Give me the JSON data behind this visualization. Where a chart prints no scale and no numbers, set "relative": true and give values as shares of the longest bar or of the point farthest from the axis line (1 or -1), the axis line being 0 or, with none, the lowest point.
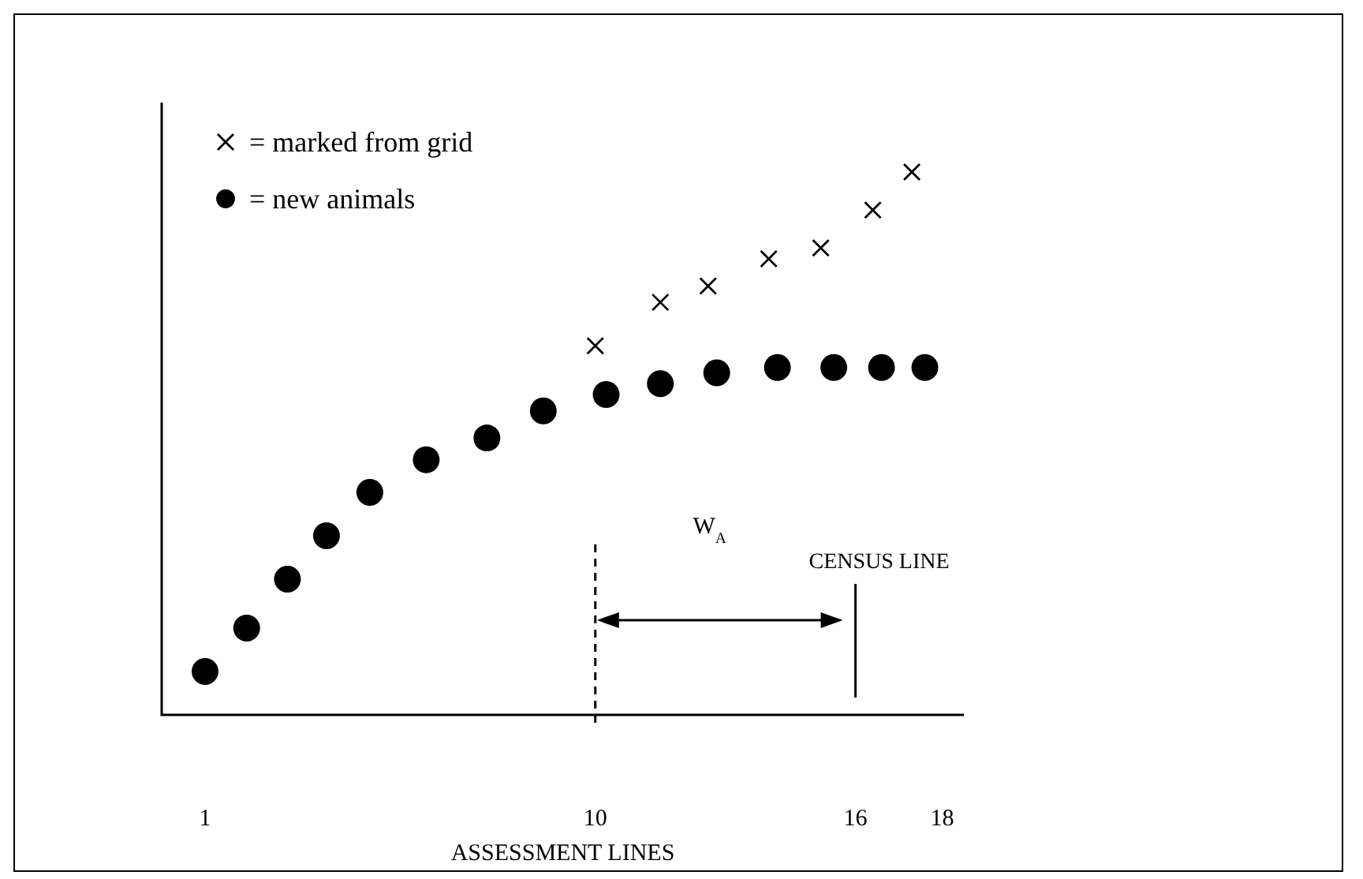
{
  "chart_data": {
    "type": "scatter",
    "relative": true,
    "xlabel": "ASSESSMENT LINES",
    "xlim": [
      0,
      18.5
    ],
    "xticks": [
      1,
      10,
      16,
      18
    ],
    "series": [
      {
        "name": "= marked from grid",
        "marker": "cross",
        "color": "#000000",
        "x": [
          10.0,
          11.5,
          12.6,
          14.0,
          15.2,
          16.4,
          17.3
        ],
        "values": [
          0.68,
          0.76,
          0.79,
          0.84,
          0.86,
          0.93,
          1.0
        ]
      },
      {
        "name": "= new animals",
        "marker": "circle",
        "color": "#000000",
        "x": [
          1.0,
          1.96,
          2.9,
          3.8,
          4.8,
          6.1,
          7.5,
          8.8,
          10.25,
          11.5,
          12.8,
          14.2,
          15.5,
          16.6,
          17.6
        ],
        "values": [
          0.08,
          0.16,
          0.25,
          0.33,
          0.41,
          0.47,
          0.51,
          0.56,
          0.59,
          0.61,
          0.63,
          0.64,
          0.64,
          0.64,
          0.64
        ]
      }
    ],
    "ref_lines": [
      {
        "axis": "x",
        "value": 10,
        "line_style": "dashed",
        "color": "#000000"
      },
      {
        "axis": "x",
        "value": 16,
        "label": "CENSUS LINE",
        "line_style": "solid",
        "color": "#000000"
      }
    ],
    "annotations": [
      "W$_{A}$"
    ],
    "legend": "top left"
  }
}
